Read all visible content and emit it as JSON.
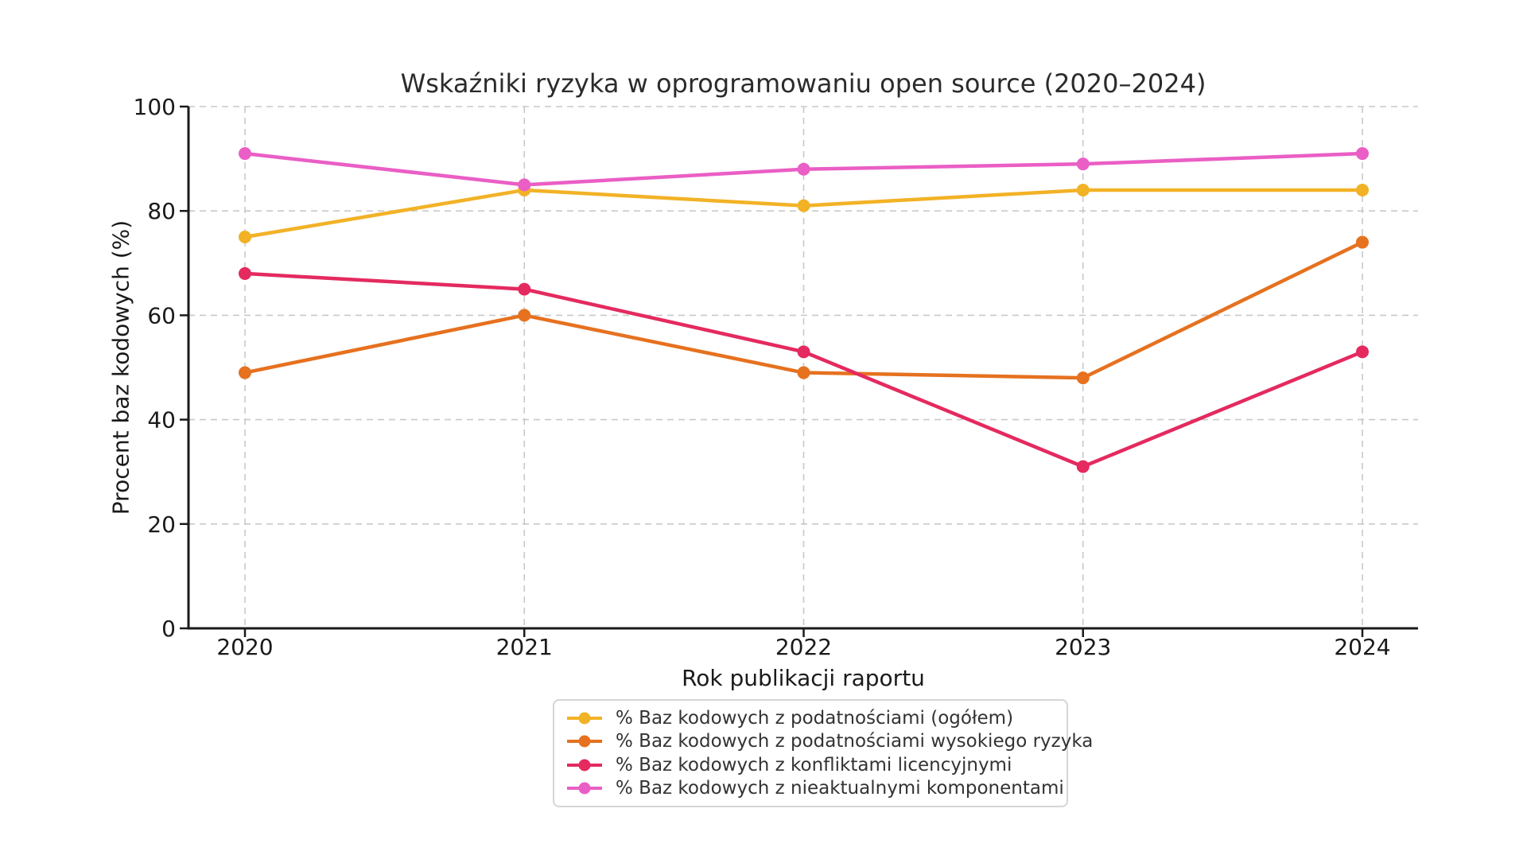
{
  "figure": {
    "background": "#ffffff"
  },
  "chart_data": {
    "type": "line",
    "title": "Wskaźniki ryzyka w oprogramowaniu open source (2020–2024)",
    "xlabel": "Rok publikacji raportu",
    "ylabel": "Procent baz kodowych (%)",
    "categories": [
      "2020",
      "2021",
      "2022",
      "2023",
      "2024"
    ],
    "ylim": [
      0,
      100
    ],
    "yticks": [
      0,
      20,
      40,
      60,
      80,
      100
    ],
    "grid": true,
    "grid_style": "dashed",
    "legend_position": "bottom-center",
    "series": [
      {
        "name": "% Baz kodowych z podatnościami (ogółem)",
        "color": "#F2B226",
        "values": [
          75,
          84,
          81,
          84,
          84
        ]
      },
      {
        "name": "% Baz kodowych z podatnościami wysokiego ryzyka",
        "color": "#E6711F",
        "values": [
          49,
          60,
          49,
          48,
          74
        ]
      },
      {
        "name": "% Baz kodowych z konfliktami licencyjnymi",
        "color": "#E42A5F",
        "values": [
          68,
          65,
          53,
          31,
          53
        ]
      },
      {
        "name": "% Baz kodowych z nieaktualnymi komponentami",
        "color": "#EA5EC5",
        "values": [
          91,
          85,
          88,
          89,
          91
        ]
      }
    ]
  }
}
